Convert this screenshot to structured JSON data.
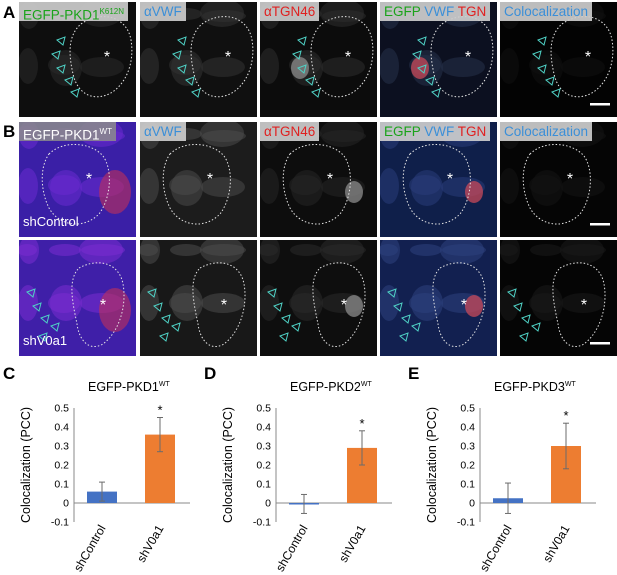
{
  "figure": {
    "panel_letters": {
      "A": "A",
      "B": "B",
      "C": "C",
      "D": "D",
      "E": "E"
    },
    "row_a": {
      "titles": [
        {
          "parts": [
            {
              "t": "EGFP-PKD1",
              "c": "#1aa31a"
            },
            {
              "t": "K612N",
              "c": "#1aa31a",
              "sup": true
            }
          ]
        },
        {
          "parts": [
            {
              "t": "αVWF",
              "c": "#3b8fd8"
            }
          ]
        },
        {
          "parts": [
            {
              "t": "αTGN46",
              "c": "#e02020"
            }
          ]
        },
        {
          "parts": [
            {
              "t": "EGFP ",
              "c": "#1aa31a"
            },
            {
              "t": "VWF ",
              "c": "#3b8fd8"
            },
            {
              "t": "TGN",
              "c": "#e02020"
            }
          ]
        },
        {
          "parts": [
            {
              "t": "Colocalization",
              "c": "#3b8fd8"
            }
          ]
        }
      ],
      "nucleus_marker": "*"
    },
    "row_b": {
      "titles": [
        {
          "parts": [
            {
              "t": "EGFP-PKD1",
              "c": "#ffffff"
            },
            {
              "t": "WT",
              "c": "#ffffff",
              "sup": true
            }
          ]
        },
        {
          "parts": [
            {
              "t": "αVWF",
              "c": "#3b8fd8"
            }
          ]
        },
        {
          "parts": [
            {
              "t": "αTGN46",
              "c": "#e02020"
            }
          ]
        },
        {
          "parts": [
            {
              "t": "EGFP ",
              "c": "#1aa31a"
            },
            {
              "t": "VWF ",
              "c": "#3b8fd8"
            },
            {
              "t": "TGN",
              "c": "#e02020"
            }
          ]
        },
        {
          "parts": [
            {
              "t": "Colocalization",
              "c": "#3b8fd8"
            }
          ]
        }
      ],
      "row_labels": [
        "shControl",
        "shV0a1"
      ],
      "nucleus_marker": "*"
    },
    "colors": {
      "green": "#1aa31a",
      "blue": "#3b8fd8",
      "red": "#e02020",
      "bar_control": "#4472c4",
      "bar_knockdown": "#ed7d31"
    }
  },
  "chart_data": [
    {
      "type": "bar",
      "title_main": "EGFP-PKD1",
      "title_sup": "WT",
      "ylabel": "Colocalization (PCC)",
      "categories": [
        "shControl",
        "shV0a1"
      ],
      "values": [
        0.06,
        0.36
      ],
      "errors": [
        0.05,
        0.09
      ],
      "significance": [
        "",
        "*"
      ],
      "ylim": [
        -0.1,
        0.5
      ],
      "yticks": [
        "-0.1",
        "0",
        "0.1",
        "0.2",
        "0.3",
        "0.4",
        "0.5"
      ],
      "grid": false
    },
    {
      "type": "bar",
      "title_main": "EGFP-PKD2",
      "title_sup": "WT",
      "ylabel": "Colocalization (PCC)",
      "categories": [
        "shControl",
        "shV0a1"
      ],
      "values": [
        -0.005,
        0.29
      ],
      "errors": [
        0.05,
        0.09
      ],
      "significance": [
        "",
        "*"
      ],
      "ylim": [
        -0.1,
        0.5
      ],
      "yticks": [
        "-0.1",
        "0",
        "0.1",
        "0.2",
        "0.3",
        "0.4",
        "0.5"
      ],
      "grid": false
    },
    {
      "type": "bar",
      "title_main": "EGFP-PKD3",
      "title_sup": "WT",
      "ylabel": "Colocalization (PCC)",
      "categories": [
        "shControl",
        "shV0a1"
      ],
      "values": [
        0.025,
        0.3
      ],
      "errors": [
        0.08,
        0.12
      ],
      "significance": [
        "",
        "*"
      ],
      "ylim": [
        -0.1,
        0.5
      ],
      "yticks": [
        "-0.1",
        "0",
        "0.1",
        "0.2",
        "0.3",
        "0.4",
        "0.5"
      ],
      "grid": false
    }
  ]
}
